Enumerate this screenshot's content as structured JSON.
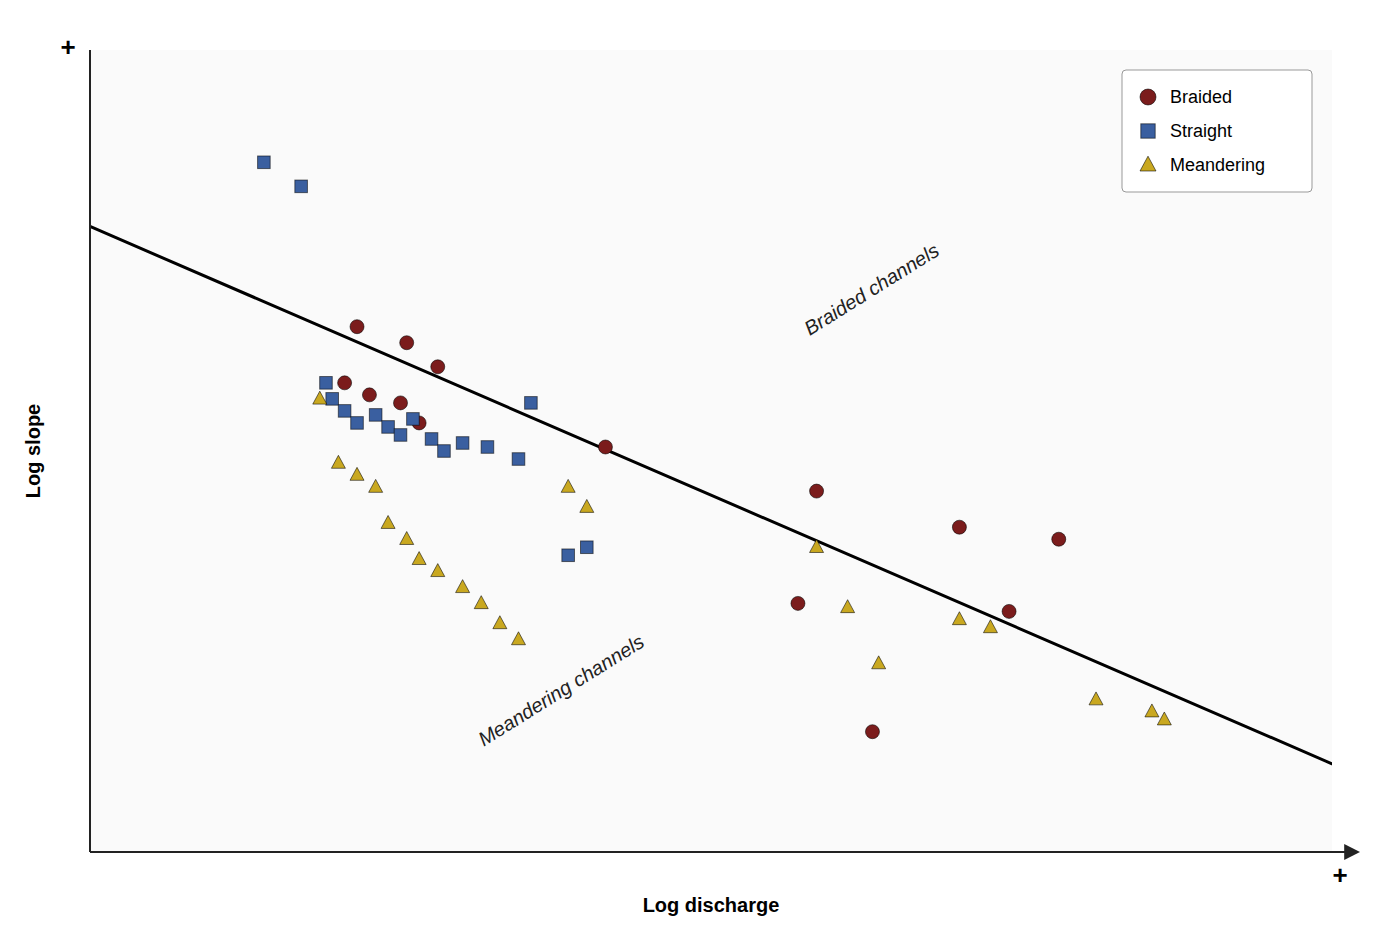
{
  "chart_data": {
    "type": "scatter",
    "xlabel": "Log discharge",
    "ylabel": "Log slope",
    "xlim": [
      0,
      10
    ],
    "ylim": [
      0,
      10
    ],
    "xticks": [],
    "yticks": [],
    "tick_labels": false,
    "grid": false,
    "legend": "upper right",
    "series": [
      {
        "type": "line",
        "color": "#000000",
        "x": [
          0.0,
          10.0
        ],
        "values": [
          7.8,
          1.1
        ]
      },
      {
        "name": "Braided",
        "type": "scatter",
        "marker": "circle",
        "color": "#7B1C1C",
        "x": [
          2.15,
          2.55,
          2.8,
          2.05,
          2.25,
          2.5,
          2.65,
          4.15,
          5.85,
          7.0,
          7.8,
          7.4,
          5.7,
          6.3
        ],
        "values": [
          6.55,
          6.35,
          6.05,
          5.85,
          5.7,
          5.6,
          5.35,
          5.05,
          4.5,
          4.05,
          3.9,
          3.0,
          3.1,
          1.5
        ]
      },
      {
        "name": "Straight",
        "type": "scatter",
        "marker": "square",
        "color": "#3A5FA0",
        "x": [
          1.4,
          1.7,
          1.9,
          1.95,
          2.05,
          2.15,
          2.3,
          2.4,
          2.5,
          2.6,
          2.75,
          2.85,
          3.0,
          3.2,
          3.45,
          3.55,
          3.85,
          4.0
        ],
        "values": [
          8.6,
          8.3,
          5.85,
          5.65,
          5.5,
          5.35,
          5.45,
          5.3,
          5.2,
          5.4,
          5.15,
          5.0,
          5.1,
          5.05,
          4.9,
          5.6,
          3.7,
          3.8
        ]
      },
      {
        "name": "Meandering",
        "type": "scatter",
        "marker": "triangle",
        "color": "#C9A820",
        "x": [
          1.85,
          2.0,
          2.15,
          2.3,
          2.4,
          2.55,
          2.65,
          2.8,
          3.0,
          3.15,
          3.3,
          3.45,
          3.85,
          4.0,
          5.85,
          6.1,
          6.35,
          7.0,
          7.25,
          8.1,
          8.55,
          8.65
        ],
        "values": [
          5.65,
          4.85,
          4.7,
          4.55,
          4.1,
          3.9,
          3.65,
          3.5,
          3.3,
          3.1,
          2.85,
          2.65,
          4.55,
          4.3,
          3.8,
          3.05,
          2.35,
          2.9,
          2.8,
          1.9,
          1.75,
          1.65
        ]
      }
    ],
    "annotations": [
      {
        "text": "Braided channels",
        "x": 6.3,
        "y": 7.0
      },
      {
        "text": "Meandering channels",
        "x": 3.8,
        "y": 2.0
      }
    ],
    "axis_end_labels": {
      "x": "+",
      "y": "+"
    }
  }
}
